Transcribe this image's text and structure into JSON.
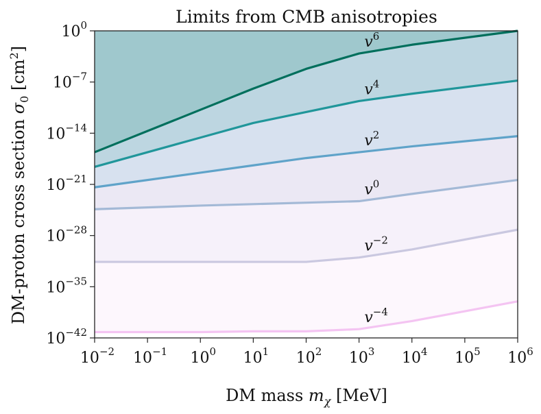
{
  "chart_data": {
    "type": "line",
    "title": "Limits from CMB anisotropies",
    "xlabel_text": "DM mass",
    "xlabel_symbol": "m",
    "xlabel_sub": "χ",
    "xlabel_unit": "[MeV]",
    "ylabel_text": "DM-proton cross section",
    "ylabel_symbol": "σ",
    "ylabel_sub": "0",
    "ylabel_unit": "[cm",
    "ylabel_unit_sup": "2",
    "ylabel_unit_close": "]",
    "xscale": "log",
    "yscale": "log",
    "xlim_exp": [
      -2,
      6
    ],
    "ylim_exp": [
      -42,
      0
    ],
    "x_ticks": [
      {
        "base": "10",
        "exp": "−2",
        "value": -2
      },
      {
        "base": "10",
        "exp": "−1",
        "value": -1
      },
      {
        "base": "10",
        "exp": "0",
        "value": 0
      },
      {
        "base": "10",
        "exp": "1",
        "value": 1
      },
      {
        "base": "10",
        "exp": "2",
        "value": 2
      },
      {
        "base": "10",
        "exp": "3",
        "value": 3
      },
      {
        "base": "10",
        "exp": "4",
        "value": 4
      },
      {
        "base": "10",
        "exp": "5",
        "value": 5
      },
      {
        "base": "10",
        "exp": "6",
        "value": 6
      }
    ],
    "y_ticks": [
      {
        "base": "10",
        "exp": "0",
        "value": 0
      },
      {
        "base": "10",
        "exp": "−7",
        "value": -7
      },
      {
        "base": "10",
        "exp": "−14",
        "value": -14
      },
      {
        "base": "10",
        "exp": "−21",
        "value": -21
      },
      {
        "base": "10",
        "exp": "−28",
        "value": -28
      },
      {
        "base": "10",
        "exp": "−35",
        "value": -35
      },
      {
        "base": "10",
        "exp": "−42",
        "value": -42
      }
    ],
    "x_log10": [
      -2,
      0,
      1,
      2,
      3,
      4,
      6
    ],
    "series": [
      {
        "name": "v6",
        "label_base": "v",
        "label_exp": "6",
        "label_at_log10x": 3.1,
        "color": "#006f5c",
        "fill": "#9fc8cd",
        "log10_y": [
          -16.6,
          -10.8,
          -7.9,
          -5.2,
          -3.1,
          -1.9,
          0.0
        ]
      },
      {
        "name": "v4",
        "label_base": "v",
        "label_exp": "4",
        "label_at_log10x": 3.1,
        "color": "#20969a",
        "fill": "#bdd6e1",
        "log10_y": [
          -18.6,
          -14.6,
          -12.6,
          -11.1,
          -9.6,
          -8.6,
          -6.8
        ]
      },
      {
        "name": "v2",
        "label_base": "v",
        "label_exp": "2",
        "label_at_log10x": 3.1,
        "color": "#5fa3c9",
        "fill": "#d7e1ef",
        "log10_y": [
          -21.4,
          -19.4,
          -18.4,
          -17.4,
          -16.6,
          -15.8,
          -14.4
        ]
      },
      {
        "name": "v0",
        "label_base": "v",
        "label_exp": "0",
        "label_at_log10x": 3.1,
        "color": "#a3b9d6",
        "fill": "#ebe8f4",
        "log10_y": [
          -24.4,
          -23.9,
          -23.7,
          -23.5,
          -23.3,
          -22.3,
          -20.4
        ]
      },
      {
        "name": "v-2",
        "label_base": "v",
        "label_exp": "−2",
        "label_at_log10x": 3.1,
        "color": "#cac8e0",
        "fill": "#f6f1fa",
        "log10_y": [
          -31.6,
          -31.6,
          -31.6,
          -31.6,
          -31.0,
          -29.9,
          -27.2
        ]
      },
      {
        "name": "v-4",
        "label_base": "v",
        "label_exp": "−4",
        "label_at_log10x": 3.1,
        "color": "#f4c4f2",
        "fill": "#fdf7fd",
        "log10_y": [
          -41.2,
          -41.2,
          -41.1,
          -41.1,
          -40.8,
          -39.7,
          -37.0
        ]
      }
    ]
  }
}
